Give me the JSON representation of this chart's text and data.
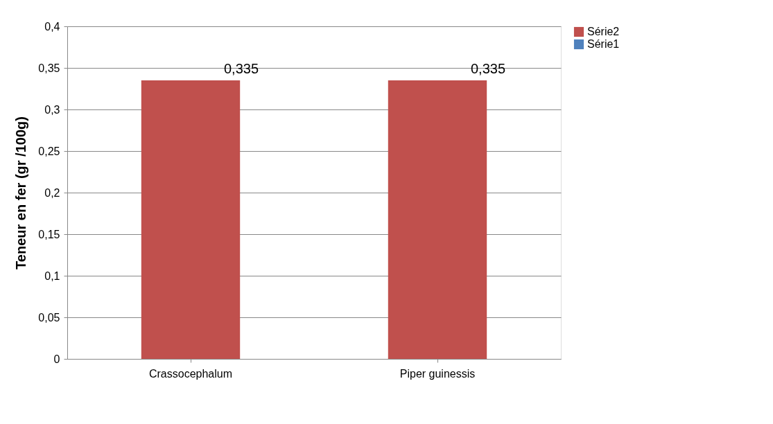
{
  "chart_data": {
    "type": "bar",
    "ylabel": "Teneur  en fer (gr /100g)",
    "categories": [
      "Crassocephalum",
      "Piper guinessis"
    ],
    "series": [
      {
        "name": "Série2",
        "color": "#c0504d",
        "values": [
          0.335,
          0.335
        ],
        "value_labels": [
          "0,335",
          "0,335"
        ]
      },
      {
        "name": "Série1",
        "color": "#4f81bd",
        "values": [
          null,
          null
        ]
      }
    ],
    "ylim": [
      0,
      0.4
    ],
    "yticks": [
      {
        "value": 0,
        "label": "0"
      },
      {
        "value": 0.05,
        "label": "0,05"
      },
      {
        "value": 0.1,
        "label": "0,1"
      },
      {
        "value": 0.15,
        "label": "0,15"
      },
      {
        "value": 0.2,
        "label": "0,2"
      },
      {
        "value": 0.25,
        "label": "0,25"
      },
      {
        "value": 0.3,
        "label": "0,3"
      },
      {
        "value": 0.35,
        "label": "0,35"
      },
      {
        "value": 0.4,
        "label": "0,4"
      }
    ],
    "grid": "y",
    "legend": "right"
  }
}
